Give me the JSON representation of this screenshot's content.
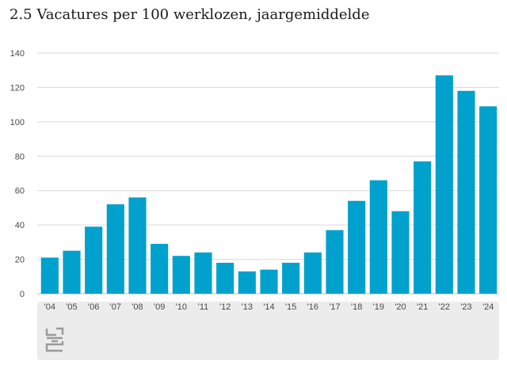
{
  "title": "2.5 Vacatures per 100 werklozen, jaargemiddelde",
  "colors": {
    "bar": "#00a1cd",
    "grid": "#d9d9d9",
    "panel": "#ececec"
  },
  "logo_icon": "cbs-logo-icon",
  "chart_data": {
    "type": "bar",
    "categories": [
      "'04",
      "'05",
      "'06",
      "'07",
      "'08",
      "'09",
      "'10",
      "'11",
      "'12",
      "'13",
      "'14",
      "'15",
      "'16",
      "'17",
      "'18",
      "'19",
      "'20",
      "'21",
      "'22",
      "'23",
      "'24"
    ],
    "values": [
      21,
      25,
      39,
      52,
      56,
      29,
      22,
      24,
      18,
      13,
      14,
      18,
      24,
      37,
      54,
      66,
      48,
      77,
      127,
      118,
      109
    ],
    "ylim": [
      0,
      140
    ],
    "yticks": [
      0,
      20,
      40,
      60,
      80,
      100,
      120,
      140
    ],
    "ytick_labels": [
      "0",
      "20",
      "40",
      "60",
      "80",
      "100",
      "120",
      "140"
    ],
    "grid": true,
    "legend": "none"
  }
}
